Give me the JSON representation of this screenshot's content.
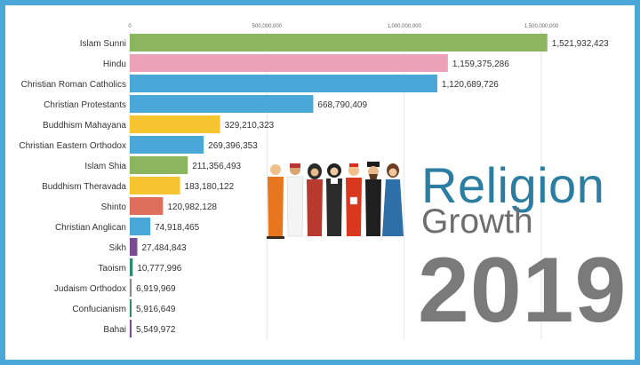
{
  "title": {
    "line1": "Religion",
    "line2": "Growth",
    "year": "2019"
  },
  "colors": {
    "frame": "#4aa8d8",
    "green": "#8bb55e",
    "pink": "#eba2b9",
    "blue": "#4aa8d8",
    "yellow": "#f6c42f",
    "salmon": "#de6f5c",
    "purple": "#7a4d93",
    "teal": "#2e8a6e",
    "gray": "#8c8c8c",
    "title_blue": "#2b7ea1",
    "title_gray": "#6e6e6e"
  },
  "chart_data": {
    "type": "bar",
    "orientation": "horizontal",
    "xlim": [
      0,
      1600000000
    ],
    "ticks": [
      {
        "value": 0,
        "label": "0"
      },
      {
        "value": 500000000,
        "label": "500,000,000"
      },
      {
        "value": 1000000000,
        "label": "1,000,000,000"
      },
      {
        "value": 1500000000,
        "label": "1,500,000,000"
      }
    ],
    "bars": [
      {
        "category": "Islam Sunni",
        "value": 1521932423,
        "label": "1,521,932,423",
        "color": "#8bb55e"
      },
      {
        "category": "Hindu",
        "value": 1159375286,
        "label": "1,159,375,286",
        "color": "#eba2b9"
      },
      {
        "category": "Christian Roman Catholics",
        "value": 1120689726,
        "label": "1,120,689,726",
        "color": "#4aa8d8"
      },
      {
        "category": "Christian Protestants",
        "value": 668790409,
        "label": "668,790,409",
        "color": "#4aa8d8"
      },
      {
        "category": "Buddhism Mahayana",
        "value": 329210323,
        "label": "329,210,323",
        "color": "#f6c42f"
      },
      {
        "category": "Christian Eastern Orthodox",
        "value": 269396353,
        "label": "269,396,353",
        "color": "#4aa8d8"
      },
      {
        "category": "Islam Shia",
        "value": 211356493,
        "label": "211,356,493",
        "color": "#8bb55e"
      },
      {
        "category": "Buddhism Theravada",
        "value": 183180122,
        "label": "183,180,122",
        "color": "#f6c42f"
      },
      {
        "category": "Shinto",
        "value": 120982128,
        "label": "120,982,128",
        "color": "#de6f5c"
      },
      {
        "category": "Christian Anglican",
        "value": 74918465,
        "label": "74,918,465",
        "color": "#4aa8d8"
      },
      {
        "category": "Sikh",
        "value": 27484843,
        "label": "27,484,843",
        "color": "#7a4d93"
      },
      {
        "category": "Taoism",
        "value": 10777996,
        "label": "10,777,996",
        "color": "#2e8a6e"
      },
      {
        "category": "Judaism Orthodox",
        "value": 6919969,
        "label": "6,919,969",
        "color": "#8c8c8c"
      },
      {
        "category": "Confucianism",
        "value": 5916649,
        "label": "5,916,649",
        "color": "#2e8a6e"
      },
      {
        "category": "Bahai",
        "value": 5549972,
        "label": "5,549,972",
        "color": "#7a4d93"
      }
    ]
  }
}
